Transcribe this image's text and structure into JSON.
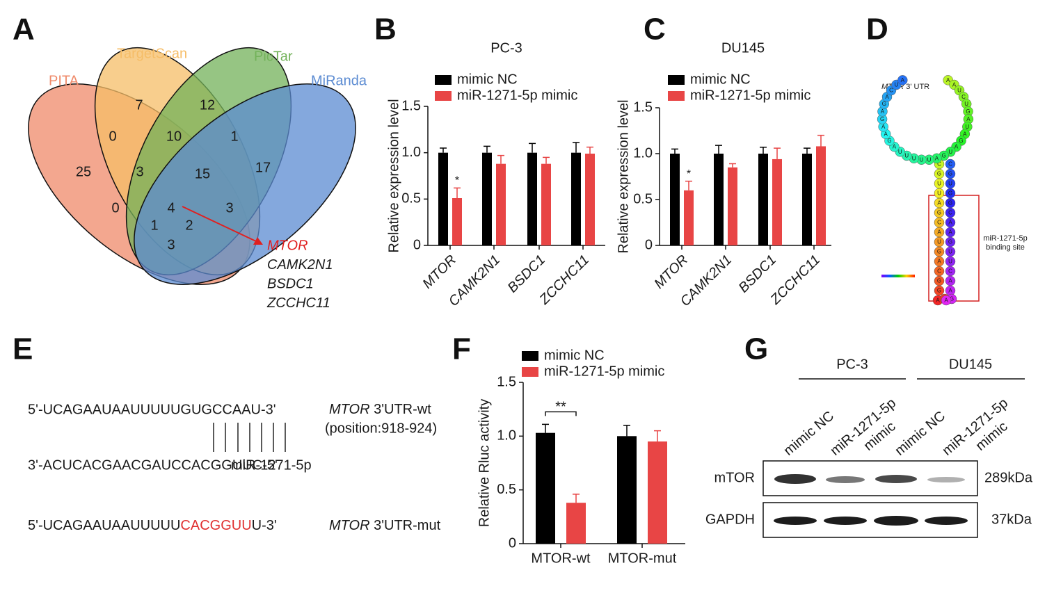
{
  "panel_labels": [
    "A",
    "B",
    "C",
    "D",
    "E",
    "F",
    "G"
  ],
  "venn": {
    "sets": [
      "PITA",
      "TargetScan",
      "PicTar",
      "MiRanda"
    ],
    "colors": [
      "#ef8a6a",
      "#f6bd67",
      "#73b25a",
      "#5b8bd2"
    ],
    "regions": [
      25,
      7,
      0,
      10,
      12,
      1,
      3,
      15,
      17,
      0,
      4,
      3,
      1,
      2,
      3
    ],
    "genes": [
      "MTOR",
      "CAMK2N1",
      "BSDC1",
      "ZCCHC11"
    ]
  },
  "chart_data": [
    {
      "type": "bar",
      "title": "PC-3",
      "ylabel": "Relative expression level",
      "categories": [
        "MTOR",
        "CAMK2N1",
        "BSDC1",
        "ZCCHC11"
      ],
      "series": [
        {
          "name": "mimic NC",
          "color": "#000000",
          "values": [
            1.0,
            1.0,
            1.0,
            1.0
          ],
          "errors": [
            0.05,
            0.07,
            0.1,
            0.11
          ]
        },
        {
          "name": "miR-1271-5p mimic",
          "color": "#e84545",
          "values": [
            0.51,
            0.88,
            0.88,
            0.99
          ],
          "errors": [
            0.11,
            0.09,
            0.07,
            0.07
          ]
        }
      ],
      "annotations": [
        "*",
        null,
        null,
        null
      ],
      "ylim": [
        0,
        1.5
      ],
      "yticks": [
        0,
        0.5,
        {
          "value": 1,
          "label": "1.0"
        },
        1.5
      ]
    },
    {
      "type": "bar",
      "title": "DU145",
      "ylabel": "Relative expression level",
      "categories": [
        "MTOR",
        "CAMK2N1",
        "BSDC1",
        "ZCCHC11"
      ],
      "series": [
        {
          "name": "mimic NC",
          "color": "#000000",
          "values": [
            1.0,
            1.0,
            1.0,
            1.0
          ],
          "errors": [
            0.05,
            0.09,
            0.07,
            0.06
          ]
        },
        {
          "name": "miR-1271-5p mimic",
          "color": "#e84545",
          "values": [
            0.6,
            0.85,
            0.94,
            1.08
          ],
          "errors": [
            0.1,
            0.04,
            0.12,
            0.12
          ]
        }
      ],
      "annotations": [
        "*",
        null,
        null,
        null
      ],
      "ylim": [
        0,
        1.5
      ],
      "yticks": [
        0,
        0.5,
        {
          "value": 1,
          "label": "1.0"
        },
        1.5
      ]
    },
    {
      "type": "bar",
      "ylabel": "Relative Rluc activity",
      "categories": [
        "MTOR-wt",
        "MTOR-mut"
      ],
      "series": [
        {
          "name": "mimic NC",
          "color": "#000000",
          "values": [
            1.03,
            1.0
          ],
          "errors": [
            0.08,
            0.1
          ]
        },
        {
          "name": "miR-1271-5p mimic",
          "color": "#e84545",
          "values": [
            0.38,
            0.95
          ],
          "errors": [
            0.08,
            0.1
          ]
        }
      ],
      "annotations": [
        "**",
        null
      ],
      "ylim": [
        0,
        1.5
      ],
      "yticks": [
        0,
        0.5,
        {
          "value": 1,
          "label": "1.0"
        },
        1.5
      ]
    }
  ],
  "structure": {
    "label_gene": "MTOR",
    "label_rest": "3' UTR",
    "sequence": "AUGGCAGUACGAUUGCAAUCUGAUAGAUGAUUUUUAGAAGAGACUACGUGGCAAGUUCAAGA",
    "site": [
      "miR-1271-5p",
      "binding site"
    ]
  },
  "sequences": {
    "wt": "5'-UCAGAAUAAUUUUUGUGCCAAU-3'",
    "wt_gene": "MTOR",
    "wt_label": "3'UTR-wt",
    "position": "(position:918-924)",
    "mirna": "3'-ACUCACGAACGAUCCACGGUUC-5'",
    "mirna_label": "miR-1271-5p",
    "mut_prefix": "5'-UCAGAAUAAUUUUU",
    "mut_site": "CACGGUU",
    "mut_suffix": "U-3'",
    "mut_gene": "MTOR",
    "mut_label": "3'UTR-mut"
  },
  "blot": {
    "groups": [
      "PC-3",
      "DU145"
    ],
    "lanes": [
      "mimic NC",
      [
        "miR-1271-5p",
        "mimic"
      ],
      "mimic NC",
      [
        "miR-1271-5p",
        "mimic"
      ]
    ],
    "proteins": [
      "mTOR",
      "GAPDH"
    ],
    "sizes": [
      "289kDa",
      "37kDa"
    ]
  }
}
